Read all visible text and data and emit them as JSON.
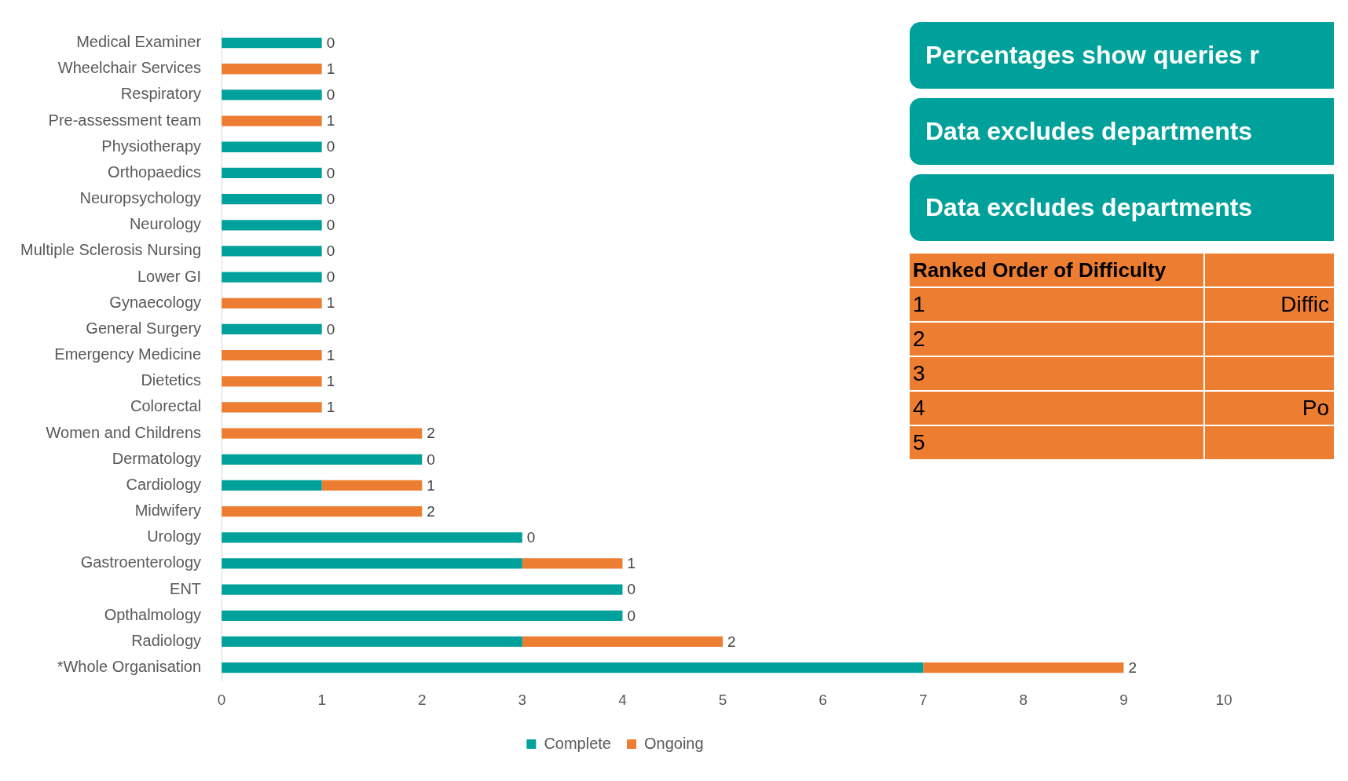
{
  "chart_data": {
    "type": "bar",
    "orientation": "horizontal",
    "stacked": true,
    "categories": [
      "Medical Examiner",
      "Wheelchair Services",
      "Respiratory",
      "Pre-assessment team",
      "Physiotherapy",
      "Orthopaedics",
      "Neuropsychology",
      "Neurology",
      "Multiple Sclerosis Nursing",
      "Lower GI",
      "Gynaecology",
      "General Surgery",
      "Emergency Medicine",
      "Dietetics",
      "Colorectal",
      "Women and Childrens",
      "Dermatology",
      "Cardiology",
      "Midwifery",
      "Urology",
      "Gastroenterology",
      "ENT",
      "Opthalmology",
      "Radiology",
      "*Whole Organisation"
    ],
    "series": [
      {
        "name": "Complete",
        "color": "#00a19a",
        "values": [
          1,
          0,
          1,
          0,
          1,
          1,
          1,
          1,
          1,
          1,
          0,
          1,
          0,
          0,
          0,
          0,
          2,
          1,
          0,
          3,
          3,
          4,
          4,
          3,
          7
        ]
      },
      {
        "name": "Ongoing",
        "color": "#ed7d31",
        "values": [
          0,
          1,
          0,
          1,
          0,
          0,
          0,
          0,
          0,
          0,
          1,
          0,
          1,
          1,
          1,
          2,
          0,
          1,
          2,
          0,
          1,
          0,
          0,
          2,
          2
        ],
        "value_labels": [
          "0",
          "1",
          "0",
          "1",
          "0",
          "0",
          "0",
          "0",
          "0",
          "0",
          "1",
          "0",
          "1",
          "1",
          "1",
          "2",
          "0",
          "1",
          "2",
          "0",
          "1",
          "0",
          "0",
          "2",
          "2"
        ]
      }
    ],
    "xlim": [
      0,
      10
    ],
    "xticks": [
      0,
      1,
      2,
      3,
      4,
      5,
      6,
      7,
      8,
      9,
      10
    ],
    "legend": "bottom",
    "annotations": [
      "Percentages show queries r",
      "Data excludes departments",
      "Data excludes departments",
      "Ranked Order of Difficulty",
      "1",
      "Diffic",
      "2",
      "3",
      "4",
      "Po",
      "5"
    ]
  }
}
